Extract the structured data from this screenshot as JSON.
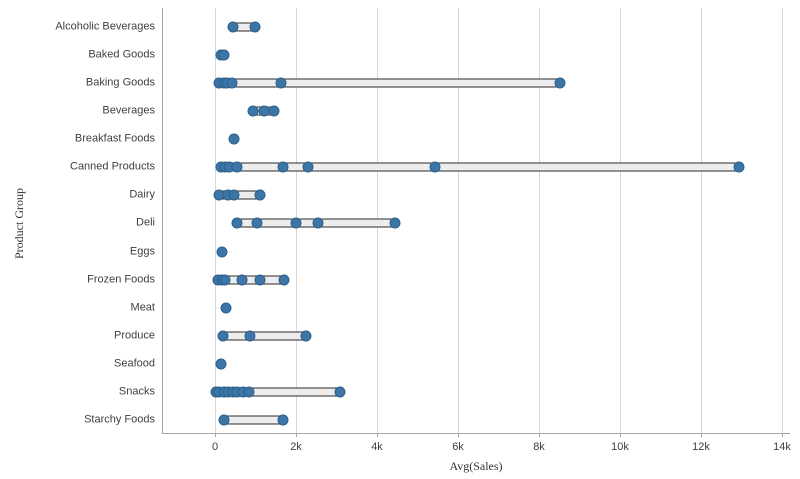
{
  "chart_data": {
    "type": "scatter",
    "subtype": "distribution-strip-plot",
    "title": "",
    "xlabel": "Avg(Sales)",
    "ylabel": "Product Group",
    "x_ticks": [
      {
        "value": 0,
        "label": "0"
      },
      {
        "value": 2000,
        "label": "2k"
      },
      {
        "value": 4000,
        "label": "4k"
      },
      {
        "value": 6000,
        "label": "6k"
      },
      {
        "value": 8000,
        "label": "8k"
      },
      {
        "value": 10000,
        "label": "10k"
      },
      {
        "value": 12000,
        "label": "12k"
      },
      {
        "value": 14000,
        "label": "14k"
      }
    ],
    "xlim": [
      -1300,
      14200
    ],
    "grid": "vertical-on",
    "legend": "none",
    "categories": [
      "Alcoholic Beverages",
      "Baked Goods",
      "Baking Goods",
      "Beverages",
      "Breakfast Foods",
      "Canned Products",
      "Dairy",
      "Deli",
      "Eggs",
      "Frozen Foods",
      "Meat",
      "Produce",
      "Seafood",
      "Snacks",
      "Starchy Foods"
    ],
    "series": [
      {
        "name": "Alcoholic Beverages",
        "values": [
          450,
          990
        ]
      },
      {
        "name": "Baked Goods",
        "values": [
          140,
          230
        ]
      },
      {
        "name": "Baking Goods",
        "values": [
          100,
          210,
          300,
          410,
          1630,
          8530
        ]
      },
      {
        "name": "Beverages",
        "values": [
          930,
          1210,
          1450
        ]
      },
      {
        "name": "Breakfast Foods",
        "values": [
          460
        ]
      },
      {
        "name": "Canned Products",
        "values": [
          140,
          250,
          350,
          550,
          1690,
          2300,
          5430,
          12950
        ]
      },
      {
        "name": "Dairy",
        "values": [
          100,
          330,
          480,
          1100
        ]
      },
      {
        "name": "Deli",
        "values": [
          540,
          1040,
          2000,
          2550,
          4440
        ]
      },
      {
        "name": "Eggs",
        "values": [
          170
        ]
      },
      {
        "name": "Frozen Foods",
        "values": [
          80,
          170,
          250,
          660,
          1110,
          1710
        ]
      },
      {
        "name": "Meat",
        "values": [
          280
        ]
      },
      {
        "name": "Produce",
        "values": [
          190,
          860,
          2250
        ]
      },
      {
        "name": "Seafood",
        "values": [
          150
        ]
      },
      {
        "name": "Snacks",
        "values": [
          30,
          110,
          220,
          330,
          450,
          550,
          680,
          850,
          3090
        ]
      },
      {
        "name": "Starchy Foods",
        "values": [
          230,
          1690
        ]
      }
    ],
    "colors": {
      "point_fill": "#3c76a6",
      "point_stroke": "#2d5f8d",
      "range_fill": "#ededed",
      "range_stroke": "#2a2a2a",
      "gridline": "#d6d6d6",
      "axis_line": "#a6a6a6",
      "text": "#404040"
    }
  }
}
